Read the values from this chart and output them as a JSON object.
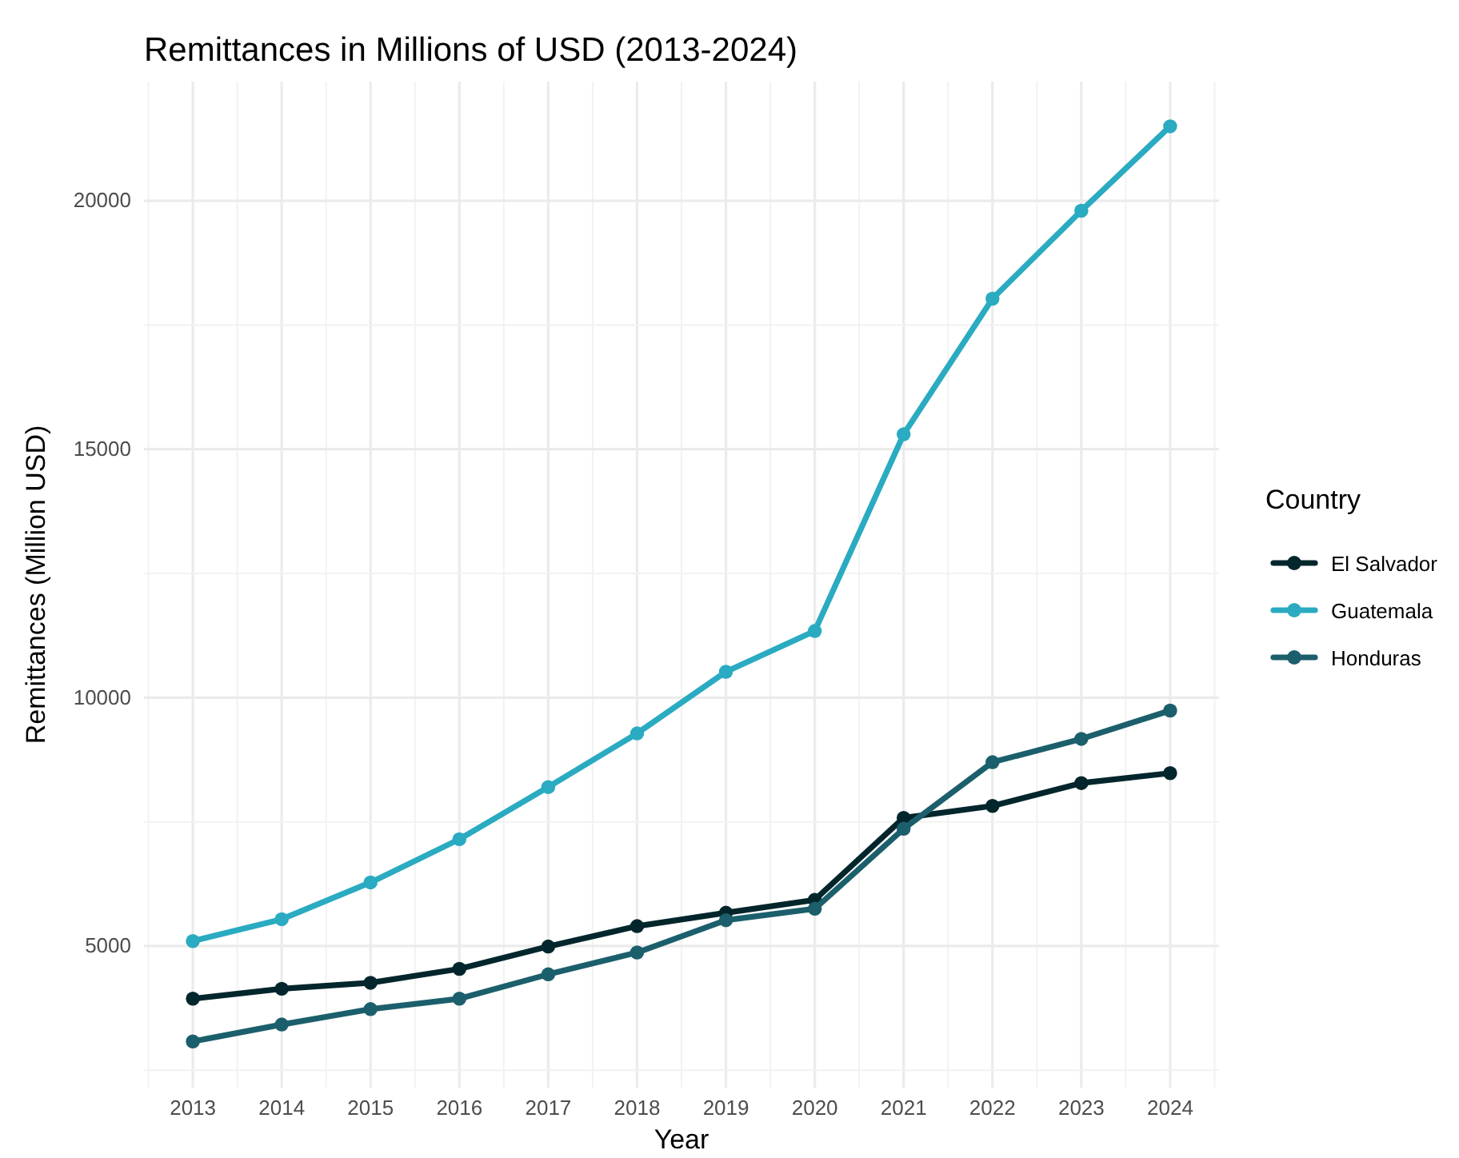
{
  "chart_data": {
    "type": "line",
    "title": "Remittances in Millions of USD (2013-2024)",
    "xlabel": "Year",
    "ylabel": "Remittances (Million USD)",
    "legend_title": "Country",
    "x": [
      2013,
      2014,
      2015,
      2016,
      2017,
      2018,
      2019,
      2020,
      2021,
      2022,
      2023,
      2024
    ],
    "series": [
      {
        "name": "El Salvador",
        "color": "#03262c",
        "values": [
          3940,
          4140,
          4260,
          4540,
          4990,
          5400,
          5670,
          5930,
          7580,
          7820,
          8280,
          8480
        ]
      },
      {
        "name": "Guatemala",
        "color": "#2aabc1",
        "values": [
          5100,
          5540,
          6280,
          7150,
          8200,
          9280,
          10520,
          11340,
          15300,
          18030,
          19800,
          21500
        ]
      },
      {
        "name": "Honduras",
        "color": "#1c5f6c",
        "values": [
          3080,
          3420,
          3730,
          3940,
          4430,
          4870,
          5520,
          5750,
          7360,
          8700,
          9170,
          9740
        ]
      }
    ],
    "xlim": [
      2012.45,
      2024.55
    ],
    "xticks": [
      2013,
      2014,
      2015,
      2016,
      2017,
      2018,
      2019,
      2020,
      2021,
      2022,
      2023,
      2024
    ],
    "ylim": [
      2150,
      22400
    ],
    "yticks": [
      5000,
      10000,
      15000,
      20000
    ],
    "grid": true,
    "legend": "right",
    "marker": "circle",
    "line_style": "solid"
  }
}
